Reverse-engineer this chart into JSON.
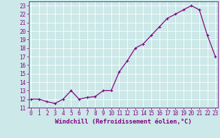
{
  "x": [
    0,
    1,
    2,
    3,
    4,
    5,
    6,
    7,
    8,
    9,
    10,
    11,
    12,
    13,
    14,
    15,
    16,
    17,
    18,
    19,
    20,
    21,
    22,
    23
  ],
  "y": [
    12,
    12,
    11.7,
    11.5,
    12,
    13,
    12,
    12.2,
    12.3,
    13,
    13,
    15.2,
    16.5,
    18,
    18.5,
    19.5,
    20.5,
    21.5,
    22,
    22.5,
    23,
    22.5,
    19.5,
    17
  ],
  "line_color": "#800080",
  "marker": "+",
  "marker_size": 3,
  "marker_lw": 0.8,
  "bg_color": "#cce8e8",
  "grid_color": "#b0d0d0",
  "xlabel": "Windchill (Refroidissement éolien,°C)",
  "xlabel_fontsize": 6.5,
  "ylabel_ticks": [
    11,
    12,
    13,
    14,
    15,
    16,
    17,
    18,
    19,
    20,
    21,
    22,
    23
  ],
  "xticks": [
    0,
    1,
    2,
    3,
    4,
    5,
    6,
    7,
    8,
    9,
    10,
    11,
    12,
    13,
    14,
    15,
    16,
    17,
    18,
    19,
    20,
    21,
    22,
    23
  ],
  "xlim": [
    -0.3,
    23.3
  ],
  "ylim": [
    11,
    23.5
  ],
  "tick_fontsize": 5.5,
  "line_color2": "#800080",
  "tick_color": "#800080",
  "axis_color": "#800080",
  "linewidth": 0.9
}
